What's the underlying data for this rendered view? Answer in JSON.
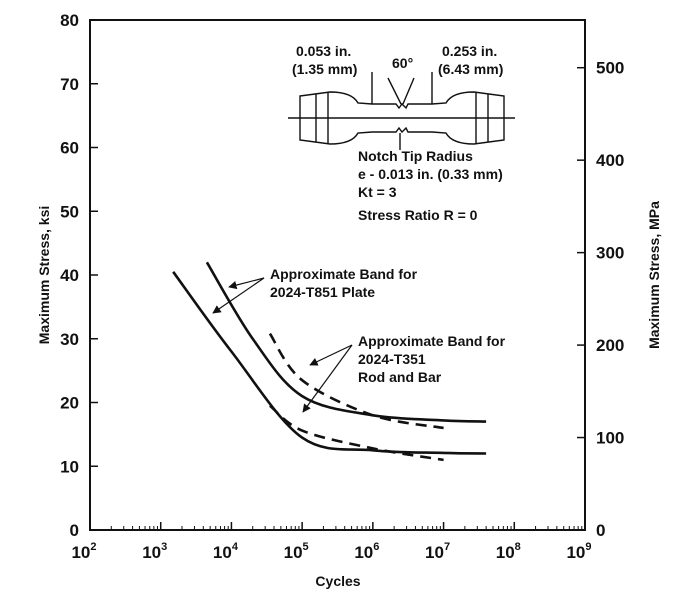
{
  "chart_data": {
    "type": "line",
    "xlabel": "Cycles",
    "ylabel_left": "Maximum Stress, ksi",
    "ylabel_right": "Maximum Stress, MPa",
    "x_scale": "log",
    "xlim": [
      100,
      1000000000
    ],
    "ylim_left": [
      0,
      80
    ],
    "ylim_right": [
      0,
      551.6
    ],
    "grid": false,
    "x_ticks": [
      {
        "value": 100,
        "base": "10",
        "exp": "2"
      },
      {
        "value": 1000,
        "base": "10",
        "exp": "3"
      },
      {
        "value": 10000,
        "base": "10",
        "exp": "4"
      },
      {
        "value": 100000,
        "base": "10",
        "exp": "5"
      },
      {
        "value": 1000000,
        "base": "10",
        "exp": "6"
      },
      {
        "value": 10000000,
        "base": "10",
        "exp": "7"
      },
      {
        "value": 100000000,
        "base": "10",
        "exp": "8"
      },
      {
        "value": 1000000000,
        "base": "10",
        "exp": "9"
      }
    ],
    "y_ticks_left": [
      "0",
      "10",
      "20",
      "30",
      "40",
      "50",
      "60",
      "70",
      "80"
    ],
    "y_ticks_right": [
      "0",
      "100",
      "200",
      "300",
      "400",
      "500"
    ],
    "series": [
      {
        "style": "solid",
        "points": [
          [
            4500,
            42
          ],
          [
            20000,
            30
          ],
          [
            100000,
            21
          ],
          [
            1000000,
            18
          ],
          [
            10000000,
            17.2
          ],
          [
            40000000,
            17
          ]
        ]
      },
      {
        "style": "solid",
        "points": [
          [
            1500,
            40.5
          ],
          [
            10000,
            28
          ],
          [
            100000,
            14.5
          ],
          [
            1000000,
            12.5
          ],
          [
            10000000,
            12.1
          ],
          [
            40000000,
            12
          ]
        ]
      },
      {
        "style": "dashed",
        "points": [
          [
            35000,
            30.8
          ],
          [
            100000,
            23.5
          ],
          [
            1000000,
            18
          ],
          [
            10000000,
            16
          ]
        ]
      },
      {
        "style": "dashed",
        "points": [
          [
            35000,
            19.5
          ],
          [
            100000,
            15.6
          ],
          [
            1000000,
            12.8
          ],
          [
            10000000,
            11
          ]
        ]
      }
    ],
    "annotations": [
      {
        "lines": [
          "Approximate Band for",
          "2024-T851 Plate"
        ]
      },
      {
        "lines": [
          "Approximate Band for",
          "2024-T351",
          "Rod and Bar"
        ]
      }
    ],
    "specimen": {
      "dim_left": [
        "0.053 in.",
        "(1.35 mm)"
      ],
      "angle": "60°",
      "dim_right": [
        "0.253 in.",
        "(6.43 mm)"
      ],
      "notes": [
        "Notch Tip Radius",
        "e - 0.013 in. (0.33 mm)",
        "Kt = 3",
        "Stress Ratio R = 0"
      ]
    }
  }
}
